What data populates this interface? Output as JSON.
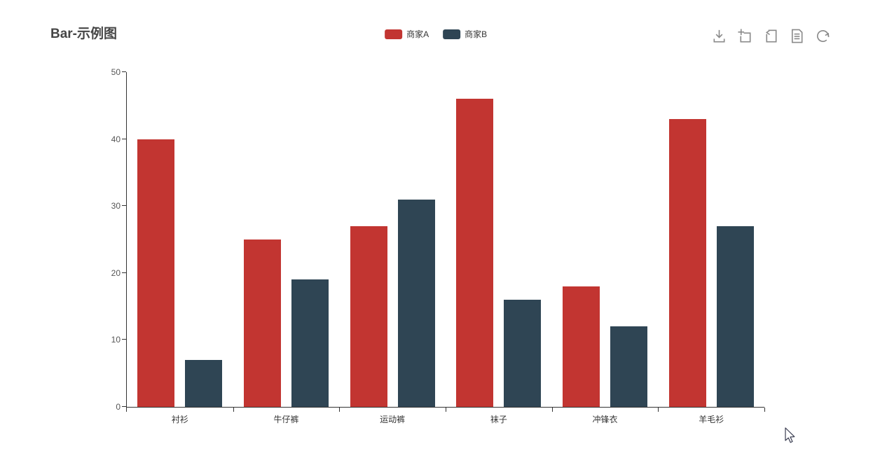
{
  "title": {
    "text": "Bar-示例图"
  },
  "legend": {
    "items": [
      {
        "label": "商家A"
      },
      {
        "label": "商家B"
      }
    ]
  },
  "toolbox": {
    "color": "#8a8a8a",
    "icons": [
      {
        "name": "save-as-image"
      },
      {
        "name": "data-zoom"
      },
      {
        "name": "data-zoom-reset"
      },
      {
        "name": "data-view"
      },
      {
        "name": "restore"
      }
    ]
  },
  "chart_data": {
    "type": "bar",
    "title": "Bar-示例图",
    "categories": [
      "衬衫",
      "牛仔裤",
      "运动裤",
      "袜子",
      "冲锋衣",
      "羊毛衫"
    ],
    "series": [
      {
        "name": "商家A",
        "color": "#c23531",
        "values": [
          40,
          25,
          27,
          46,
          18,
          43
        ]
      },
      {
        "name": "商家B",
        "color": "#2f4554",
        "values": [
          7,
          19,
          31,
          16,
          12,
          27
        ]
      }
    ],
    "xlabel": "",
    "ylabel": "",
    "ylim": [
      0,
      50
    ],
    "yticks": [
      0,
      10,
      20,
      30,
      40,
      50
    ],
    "legend_position": "top-center",
    "grid": false
  }
}
